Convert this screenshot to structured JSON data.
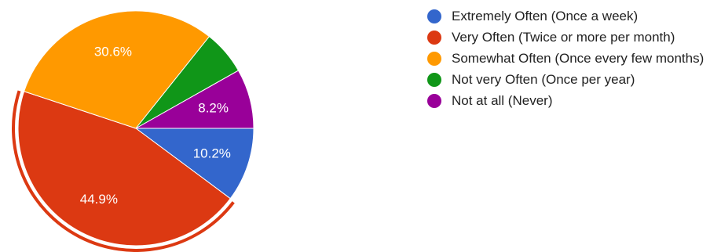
{
  "chart_data": {
    "type": "pie",
    "slices": [
      {
        "label": "Extremely Often (Once a week)",
        "percent": 10.2,
        "color": "#3366cc",
        "data_label": "10.2%"
      },
      {
        "label": "Very Often (Twice or more per month)",
        "percent": 44.9,
        "color": "#dc3912",
        "data_label": "44.9%",
        "exploded": true
      },
      {
        "label": "Somewhat Often (Once every few months)",
        "percent": 30.6,
        "color": "#ff9900",
        "data_label": "30.6%"
      },
      {
        "label": "Not very Often (Once per year)",
        "percent": 6.1,
        "color": "#109618",
        "data_label": ""
      },
      {
        "label": "Not at all (Never)",
        "percent": 8.2,
        "color": "#990099",
        "data_label": "8.2%"
      }
    ],
    "start_angle_deg": 90,
    "direction": "clockwise",
    "legend_position": "right"
  }
}
